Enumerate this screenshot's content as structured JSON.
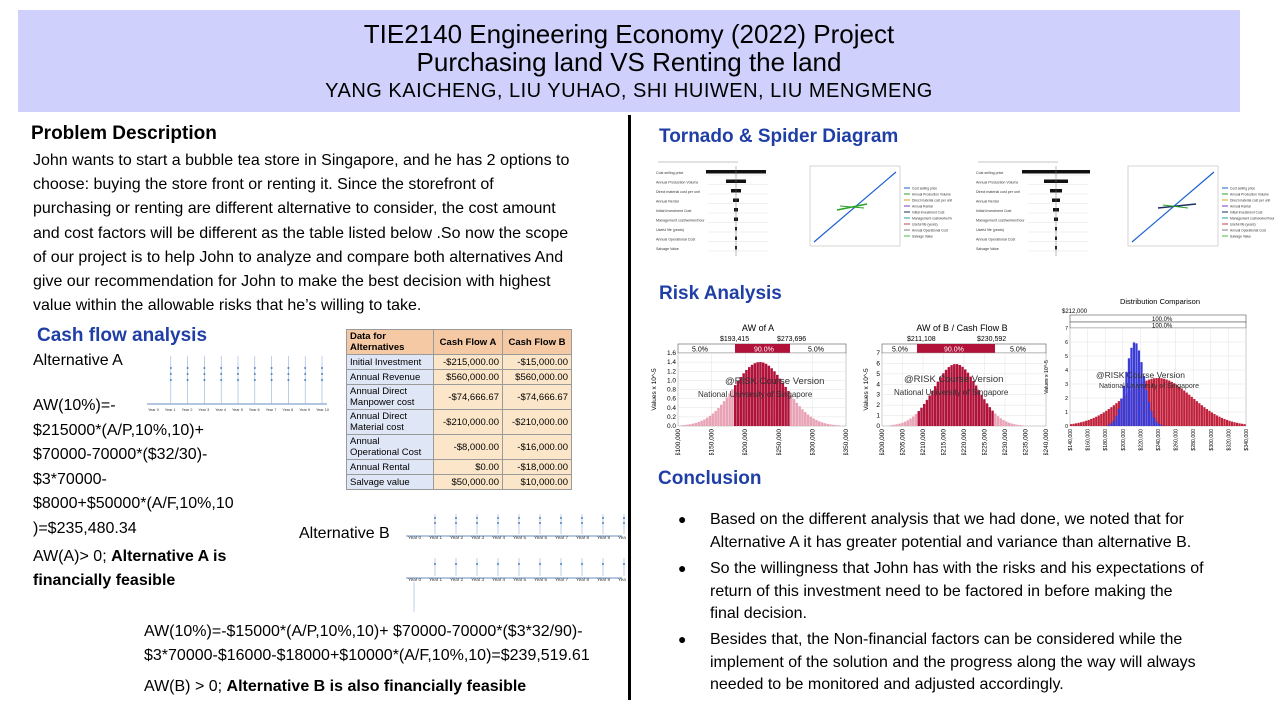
{
  "header": {
    "title_line1": "TIE2140 Engineering Economy (2022) Project",
    "title_line2": "Purchasing land VS Renting the land",
    "authors": "YANG KAICHENG,    LIU YUHAO,   SHI HUIWEN,   LIU MENGMENG"
  },
  "problem": {
    "heading": "Problem Description",
    "lines": [
      "John wants to start a bubble tea store in Singapore, and he has 2 options to",
      "choose: buying the store front or renting it. Since the storefront of",
      "purchasing or renting are different alternative to consider, the cost amount",
      "and cost factors will be different as the table listed below .So now the scope",
      "of our project is to help John to analyze and compare both alternatives And",
      "give our recommendation for John to make the best decision with highest",
      "value within the allowable risks that he’s willing to take."
    ]
  },
  "cashflow": {
    "heading": "Cash flow  analysis",
    "alt_a_label": "Alternative A",
    "alt_a_formula": [
      "AW(10%)=-",
      "$215000*(A/P,10%,10)+",
      "$70000-70000*($32/30)-",
      "$3*70000-",
      "$8000+$50000*(A/F,10%,10",
      ")=$235,480.34"
    ],
    "alt_a_conclusion_prefix": "AW(A)> 0; ",
    "alt_a_conclusion_bold": [
      "Alternative A is",
      "financially feasible"
    ],
    "alt_b_label": "Alternative B",
    "alt_b_formula": [
      "AW(10%)=-$15000*(A/P,10%,10)+ $70000-70000*($3*32/90)-",
      "$3*70000-$16000-$18000+$10000*(A/F,10%,10)=$239,519.61"
    ],
    "alt_b_conclusion_prefix": "AW(B) > 0; ",
    "alt_b_conclusion_bold": "Alternative B is also financially feasible",
    "years": [
      "Year 0",
      "Year 1",
      "Year 2",
      "Year 3",
      "Year 4",
      "Year 5",
      "Year 6",
      "Year 7",
      "Year 8",
      "Year 9",
      "Year 10"
    ]
  },
  "table": {
    "headers": [
      "Data for Alternatives",
      "Cash Flow A",
      "Cash Flow B"
    ],
    "rows": [
      {
        "label": "Initial Investment",
        "a": "-$215,000.00",
        "b": "-$15,000.00"
      },
      {
        "label": "Annual Revenue",
        "a": "$560,000.00",
        "b": "$560,000.00"
      },
      {
        "label": "Annual Direct Manpower cost",
        "a": "-$74,666.67",
        "b": "-$74,666.67"
      },
      {
        "label": "Annual Direct Material cost",
        "a": "-$210,000.00",
        "b": "-$210,000.00"
      },
      {
        "label": "Annual Operational Cost",
        "a": "-$8,000.00",
        "b": "-$16,000.00"
      },
      {
        "label": "Annual Rental",
        "a": "$0.00",
        "b": "-$18,000.00"
      },
      {
        "label": "Salvage value",
        "a": "$50,000.00",
        "b": "$10,000.00"
      }
    ]
  },
  "tornado": {
    "heading": "Tornado & Spider Diagram",
    "tornado_labels": [
      "Cost selling price",
      "Annual Production Volume",
      "Direct material cost per unit",
      "Annual Rental",
      "Initial Investment Cost",
      "Management cost/worker/hour",
      "Useful life (years)",
      "Annual Operational Cost",
      "Salvage Value"
    ]
  },
  "risk": {
    "heading": "Risk Analysis",
    "chart_a": {
      "title": "AW of A",
      "left_val": "$193,415",
      "right_val": "$273,696",
      "p_left": "5.0%",
      "p_mid": "90.0%",
      "p_right": "5.0%",
      "ylabel": "Values x 10^-5",
      "ticks_y": [
        "1.6",
        "1.4",
        "1.2",
        "1.0",
        "0.8",
        "0.6",
        "0.4",
        "0.2",
        "0.0"
      ],
      "ticks_x": [
        "$100,000",
        "$150,000",
        "$200,000",
        "$250,000",
        "$300,000",
        "$350,000"
      ]
    },
    "chart_b": {
      "title": "AW of B / Cash Flow B",
      "left_val": "$211,108",
      "right_val": "$230,592",
      "p_left": "5.0%",
      "p_mid": "90.0%",
      "p_right": "5.0%",
      "ylabel": "Values x 10^-5",
      "ticks_y": [
        "7",
        "6",
        "5",
        "4",
        "3",
        "2",
        "1",
        "0"
      ],
      "ticks_x": [
        "$200,000",
        "$205,000",
        "$210,000",
        "$215,000",
        "$220,000",
        "$225,000",
        "$230,000",
        "$235,000",
        "$240,000"
      ]
    },
    "chart_c": {
      "title": "Distribution Comparison",
      "top_val": "$212,000",
      "bar1": "100.0%",
      "bar2": "100.0%",
      "ylabel": "Values x 10^-5",
      "ticks_y": [
        "7",
        "6",
        "5",
        "4",
        "3",
        "2",
        "1",
        "0"
      ],
      "ticks_x": [
        "$140,000",
        "$160,000",
        "$180,000",
        "$200,000",
        "$220,000",
        "$240,000",
        "$260,000",
        "$280,000",
        "$300,000",
        "$320,000",
        "$340,000"
      ]
    },
    "watermark_1": "@RISK Course Version",
    "watermark_2": "National University of Singapore"
  },
  "conclusion": {
    "heading": "Conclusion",
    "bullets": [
      [
        "Based on the different analysis that we had done,  we noted that for",
        "Alternative A it has greater potential and variance than alternative B."
      ],
      [
        "So the willingness that John has with the risks and his expectations of",
        "return of this investment need to be factored in before making the",
        "final decision."
      ],
      [
        "Besides that, the Non-financial factors can be considered while the",
        "implement of the solution and the progress along the way will always",
        "needed to be monitored and adjusted accordingly."
      ]
    ]
  },
  "colors": {
    "banner": "#cfd0fb",
    "heading_blue": "#1f3fa6",
    "risk_red": "#b0123a",
    "compare_blue": "#3a3ad6"
  }
}
